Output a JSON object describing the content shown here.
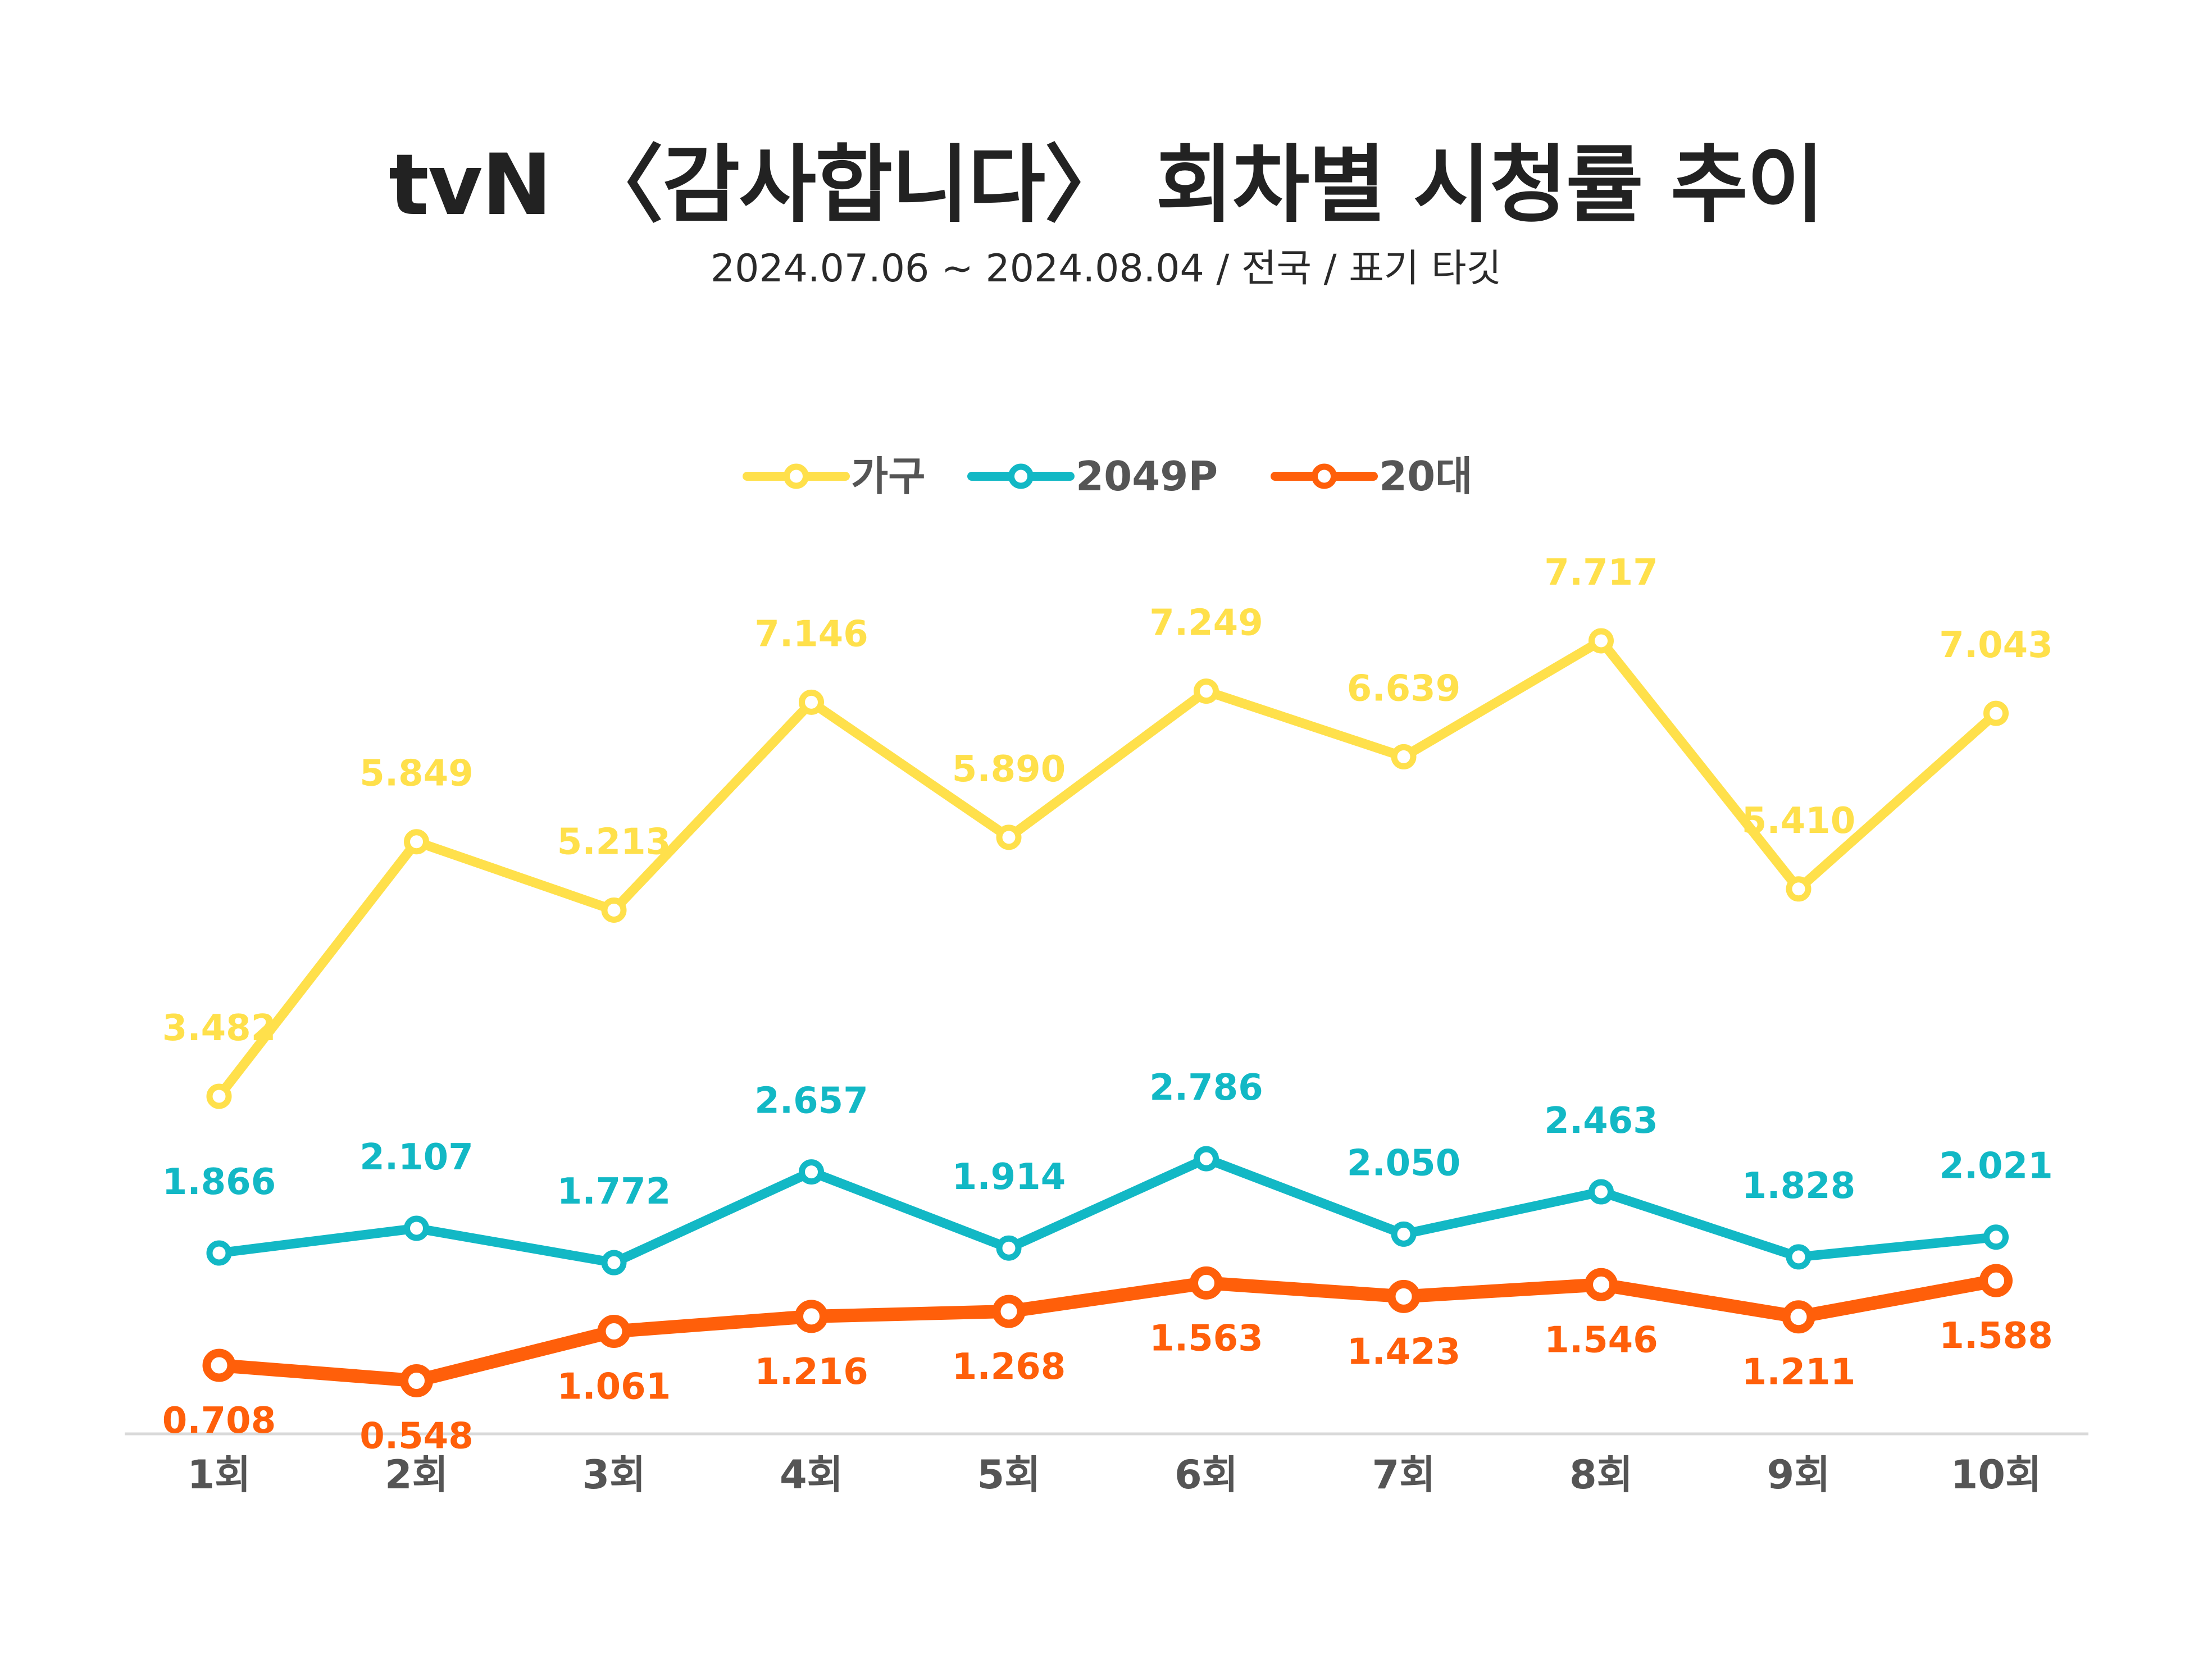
{
  "title": "tvN 〈감사합니다〉 회차별 시청률 추이",
  "subtitle": "2024.07.06 ~ 2024.08.04 / 전국 / 표기 타깃",
  "chart_data": {
    "type": "line",
    "categories": [
      "1회",
      "2회",
      "3회",
      "4회",
      "5회",
      "6회",
      "7회",
      "8회",
      "9회",
      "10회"
    ],
    "series": [
      {
        "name": "가구",
        "color": "#FFE04B",
        "labels": [
          "3.482",
          "5.849",
          "5.213",
          "7.146",
          "5.890",
          "7.249",
          "6.639",
          "7.717",
          "5.410",
          "7.043"
        ],
        "values": [
          3.482,
          5.849,
          5.213,
          7.146,
          5.89,
          7.249,
          6.639,
          7.717,
          5.41,
          7.043
        ],
        "label_position": "above"
      },
      {
        "name": "2049P",
        "color": "#12B8C5",
        "labels": [
          "1.866",
          "2.107",
          "1.772",
          "2.657",
          "1.914",
          "2.786",
          "2.050",
          "2.463",
          "1.828",
          "2.021"
        ],
        "values": [
          1.866,
          2.107,
          1.772,
          2.657,
          1.914,
          2.786,
          2.05,
          2.463,
          1.828,
          2.021
        ],
        "label_position": "above"
      },
      {
        "name": "20대",
        "color": "#FF5F0A",
        "labels": [
          "0.708",
          "0.548",
          "1.061",
          "1.216",
          "1.268",
          "1.563",
          "1.423",
          "1.546",
          "1.211",
          "1.588"
        ],
        "values": [
          0.708,
          0.548,
          1.061,
          1.216,
          1.268,
          1.563,
          1.423,
          1.546,
          1.211,
          1.588
        ],
        "label_position": "below"
      }
    ],
    "legend_position": "top-center",
    "grid": false,
    "axis_color": "#D9D9D9",
    "tick_color": "#555555"
  }
}
